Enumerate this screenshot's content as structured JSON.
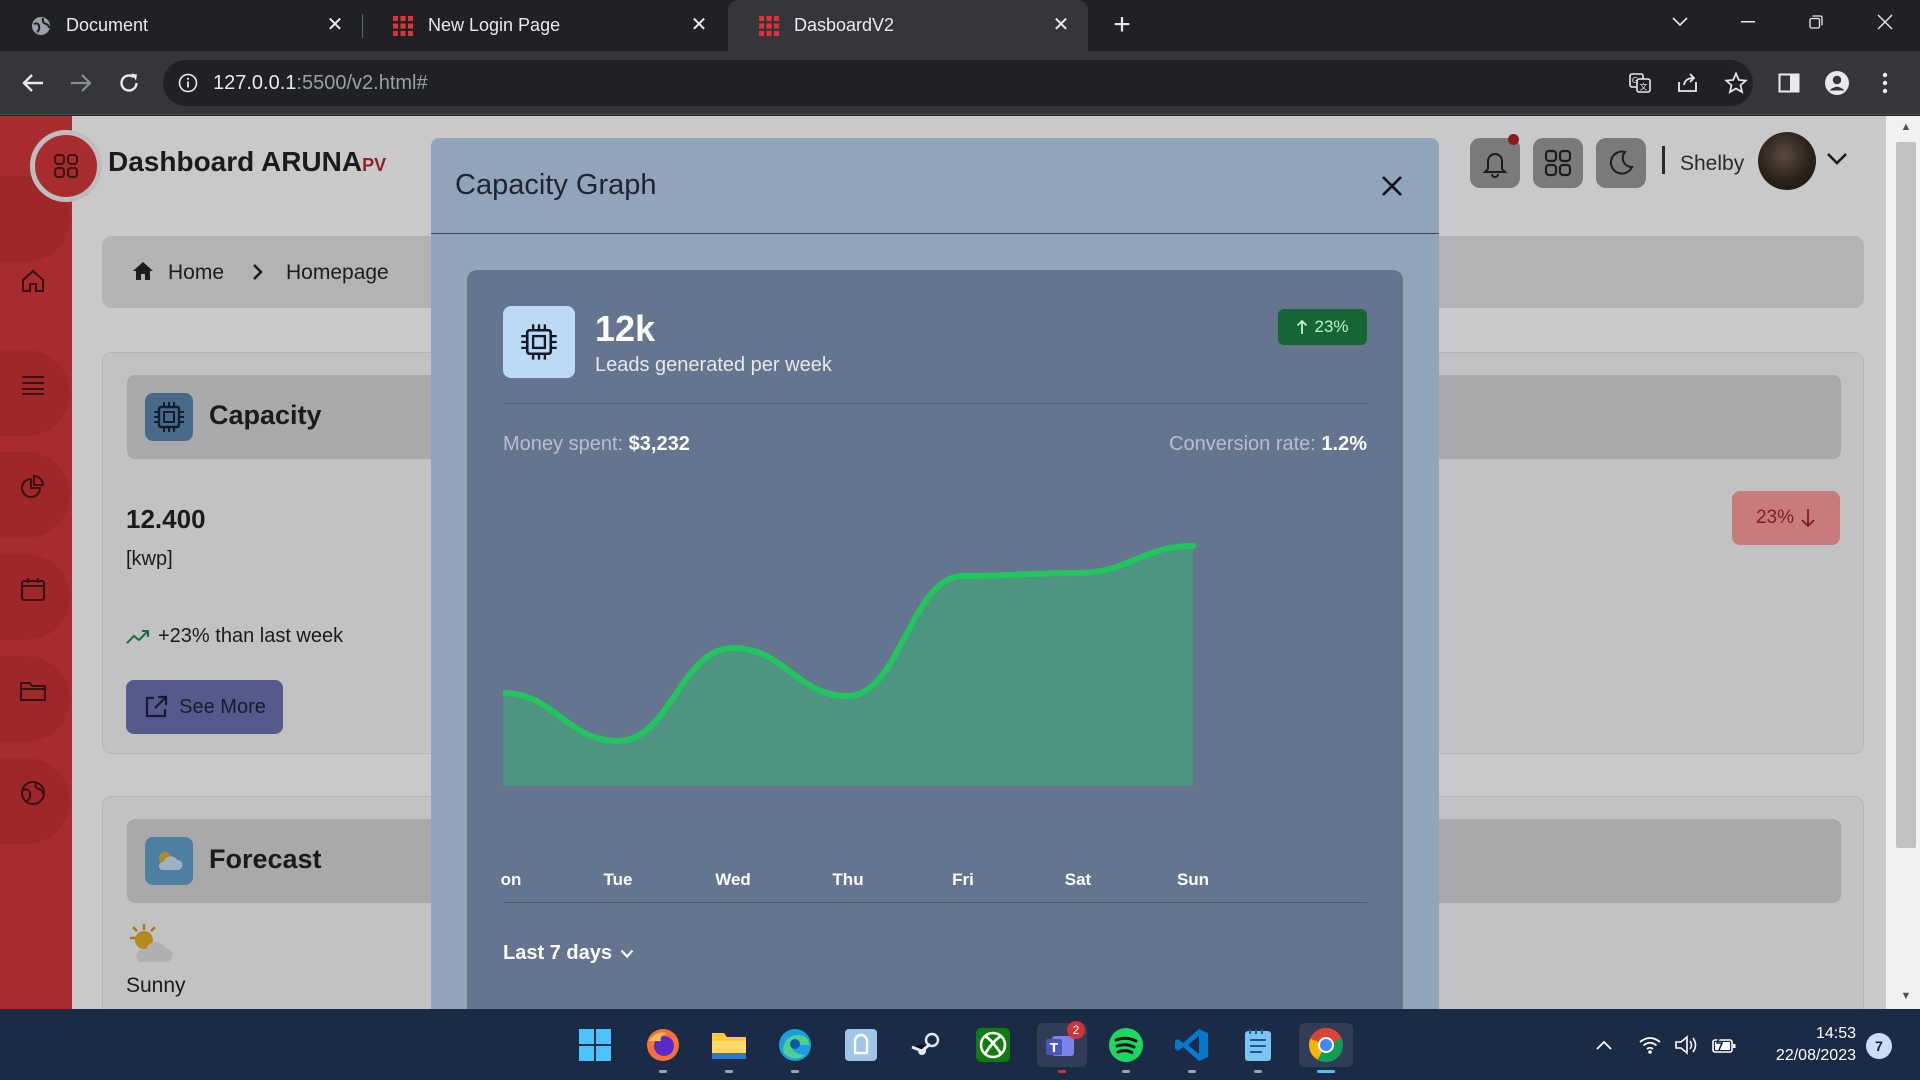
{
  "browser": {
    "tabs": [
      {
        "title": "Document",
        "favicon": "globe-icon",
        "active": false
      },
      {
        "title": "New Login Page",
        "favicon": "grid-favicon",
        "active": false
      },
      {
        "title": "DasboardV2",
        "favicon": "grid-favicon",
        "active": true
      }
    ],
    "url_host": "127.0.0.1",
    "url_rest": ":5500/v2.html#"
  },
  "app": {
    "brand": "Dashboard ARUNA",
    "brand_suffix": "PV",
    "user_name": "Shelby",
    "accent_color": "#a82c2e"
  },
  "breadcrumb": {
    "home": "Home",
    "current": "Homepage"
  },
  "capacity_card": {
    "title": "Capacity",
    "value": "12.400",
    "unit": "[kwp]",
    "trend_text": "+23% than last week",
    "see_more": "See More",
    "change_badge": "23%"
  },
  "forecast_card": {
    "title": "Forecast",
    "condition": "Sunny"
  },
  "modal": {
    "title": "Capacity Graph",
    "kpi": "12k",
    "kpi_subtitle": "Leads generated per week",
    "up_badge": "23%",
    "money_label": "Money spent:",
    "money_value": "$3,232",
    "conversion_label": "Conversion rate:",
    "conversion_value": "1.2%",
    "range_label": "Last 7 days"
  },
  "chart_data": {
    "type": "area",
    "categories": [
      "Mon",
      "Tue",
      "Wed",
      "Thu",
      "Fri",
      "Sat",
      "Sun"
    ],
    "visible_tick_labels": [
      "on",
      "Tue",
      "Wed",
      "Thu",
      "Fri",
      "Sat",
      "Sun"
    ],
    "values": [
      31,
      15,
      46,
      30,
      70,
      71,
      80
    ],
    "ylim": [
      0,
      100
    ],
    "line_color": "#22c55e",
    "fill_color": "#4f9382",
    "grid": false
  },
  "taskbar": {
    "apps": [
      "windows-start-icon",
      "firefox-icon",
      "file-explorer-icon",
      "edge-icon",
      "photos-icon",
      "steam-icon",
      "xbox-icon",
      "teams-icon",
      "spotify-icon",
      "vscode-icon",
      "notepad-icon",
      "chrome-icon"
    ],
    "teams_badge": "2",
    "time": "14:53",
    "date": "22/08/2023",
    "notification_count": "7"
  }
}
